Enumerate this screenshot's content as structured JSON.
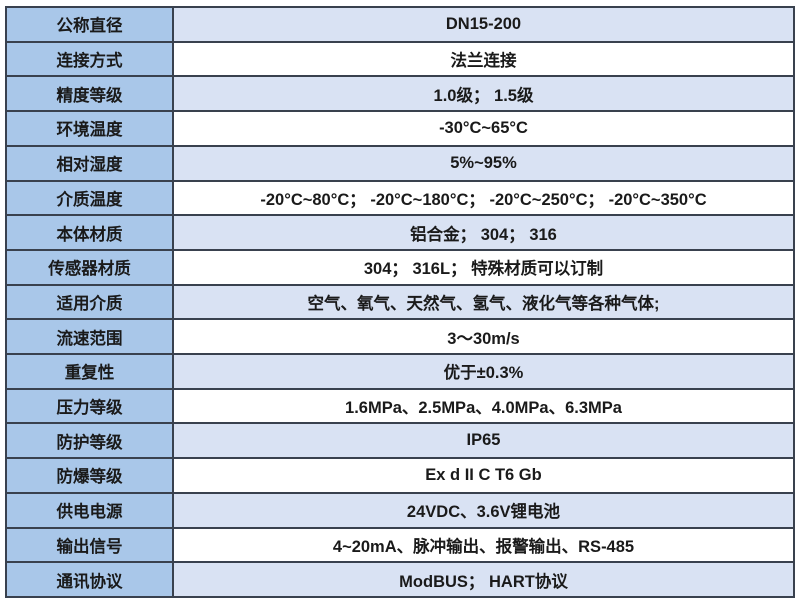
{
  "table": {
    "colors": {
      "label_bg": "#a9c7e9",
      "value_row_odd_bg": "#d9e2f3",
      "value_row_even_bg": "#ffffff",
      "border": "#39414e",
      "text": "#1a1a1a",
      "page_bg": "#ffffff"
    },
    "rows": [
      {
        "label": "公称直径",
        "value": "DN15-200"
      },
      {
        "label": "连接方式",
        "value": "法兰连接"
      },
      {
        "label": "精度等级",
        "value": "1.0级； 1.5级"
      },
      {
        "label": "环境温度",
        "value": "-30°C~65°C"
      },
      {
        "label": "相对湿度",
        "value": "5%~95%"
      },
      {
        "label": "介质温度",
        "value": "-20°C~80°C； -20°C~180°C； -20°C~250°C； -20°C~350°C"
      },
      {
        "label": "本体材质",
        "value": "铝合金； 304； 316"
      },
      {
        "label": "传感器材质",
        "value": "304； 316L； 特殊材质可以订制"
      },
      {
        "label": "适用介质",
        "value": "空气、氧气、天然气、氢气、液化气等各种气体;"
      },
      {
        "label": "流速范围",
        "value": "3～30m/s"
      },
      {
        "label": "重复性",
        "value": "优于±0.3%"
      },
      {
        "label": "压力等级",
        "value": "1.6MPa、2.5MPa、4.0MPa、6.3MPa"
      },
      {
        "label": "防护等级",
        "value": "IP65"
      },
      {
        "label": "防爆等级",
        "value": "Ex d II C T6 Gb"
      },
      {
        "label": "供电电源",
        "value": "24VDC、3.6V锂电池"
      },
      {
        "label": "输出信号",
        "value": "4~20mA、脉冲输出、报警输出、RS-485"
      },
      {
        "label": "通讯协议",
        "value": "ModBUS； HART协议"
      }
    ]
  }
}
